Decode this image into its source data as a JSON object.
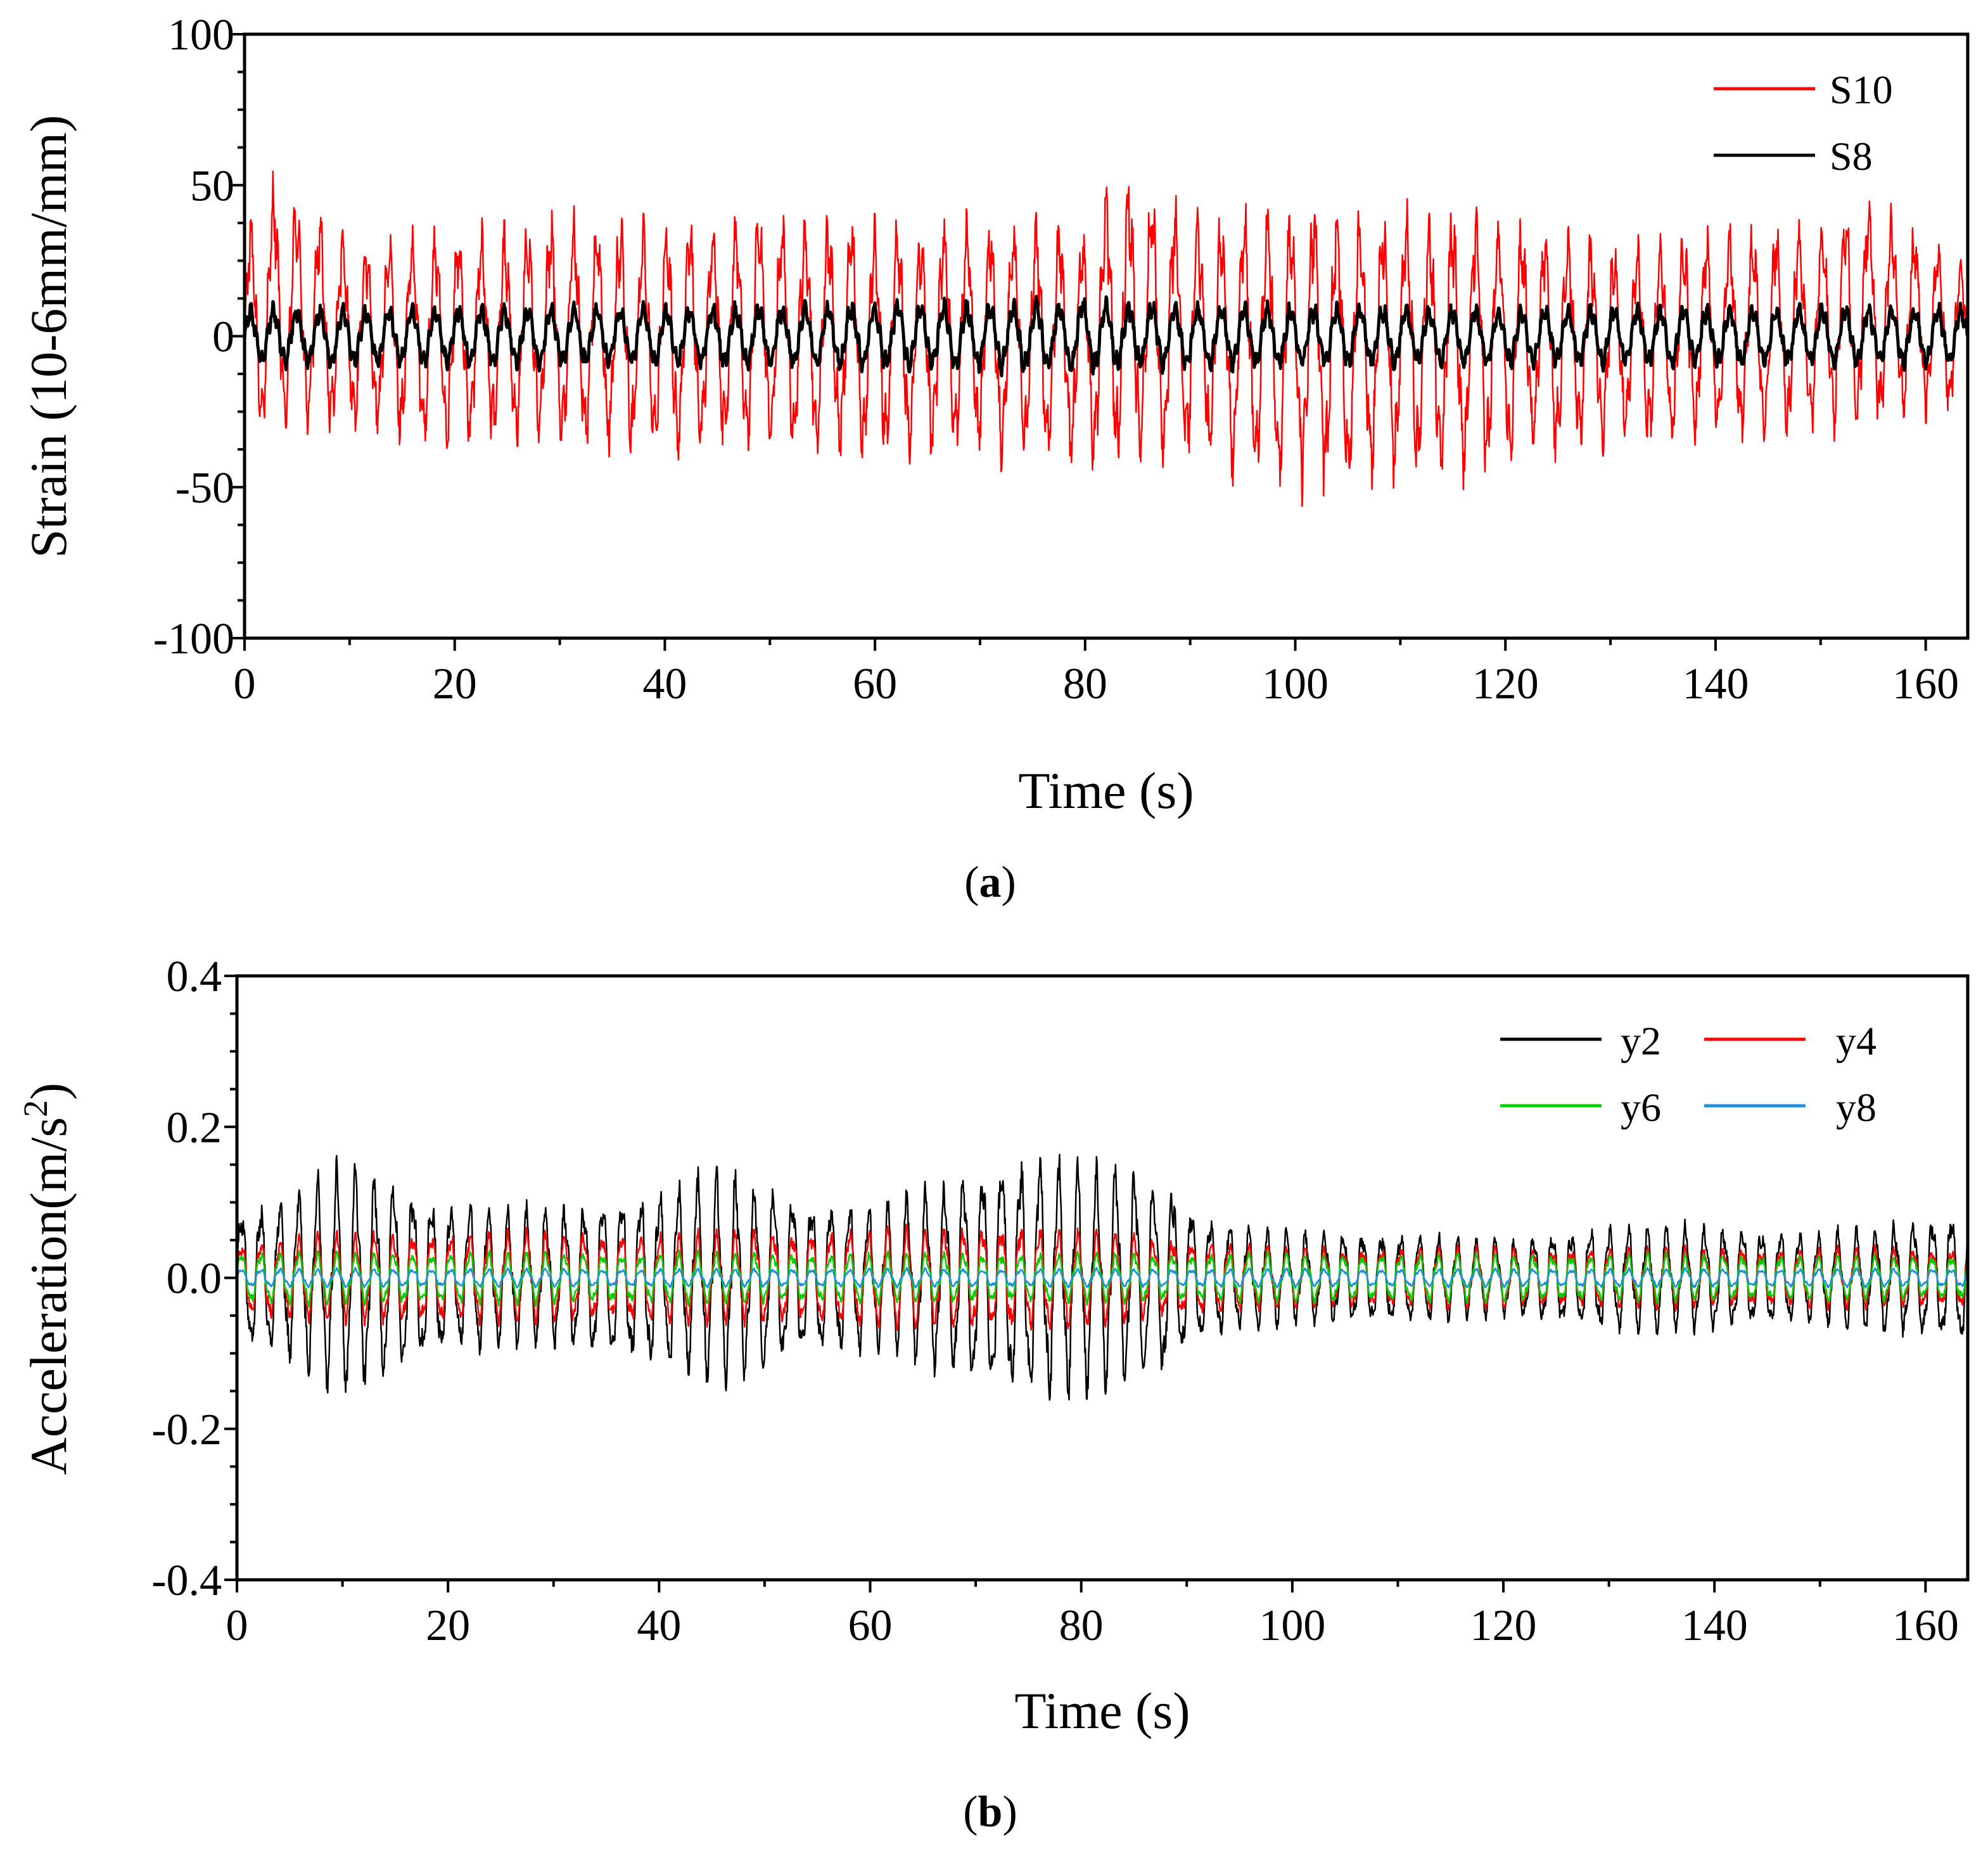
{
  "chart_data": [
    {
      "id": "a",
      "type": "line",
      "panel_label": "a",
      "xlabel": "Time (s)",
      "ylabel": "Strain (10-6mm/mm)",
      "xlim": [
        0,
        164
      ],
      "ylim": [
        -100,
        100
      ],
      "xticks": [
        0,
        20,
        40,
        60,
        80,
        100,
        120,
        140,
        160
      ],
      "xtick_labels": [
        "0",
        "20",
        "40",
        "60",
        "80",
        "100",
        "120",
        "140",
        "160"
      ],
      "yticks": [
        -100,
        -50,
        0,
        50,
        100
      ],
      "ytick_labels": [
        "-100",
        "-50",
        "0",
        "50",
        "100"
      ],
      "legend": {
        "position": "top-right",
        "columns": 1
      },
      "series": [
        {
          "name": "S10",
          "color": "#ff0000",
          "description": "oscillating strain signal, period about 2.2 s",
          "envelope_x": [
            0,
            3,
            10,
            20,
            30,
            40,
            50,
            60,
            70,
            80,
            83,
            90,
            100,
            110,
            115,
            120,
            130,
            140,
            150,
            154,
            164
          ],
          "envelope_max": [
            32,
            52,
            30,
            33,
            38,
            36,
            38,
            36,
            38,
            36,
            54,
            38,
            42,
            40,
            40,
            38,
            30,
            34,
            36,
            46,
            22
          ],
          "envelope_min": [
            -30,
            -32,
            -30,
            -35,
            -35,
            -38,
            -36,
            -40,
            -38,
            -42,
            -40,
            -40,
            -50,
            -44,
            -48,
            -40,
            -35,
            -33,
            -32,
            -30,
            -22
          ],
          "period": 2.2
        },
        {
          "name": "S8",
          "color": "#000000",
          "description": "small oscillating strain signal around zero",
          "envelope_x": [
            0,
            40,
            80,
            100,
            164
          ],
          "envelope_max": [
            10,
            10,
            12,
            10,
            10
          ],
          "envelope_min": [
            -10,
            -10,
            -12,
            -10,
            -10
          ],
          "period": 2.2
        }
      ]
    },
    {
      "id": "b",
      "type": "line",
      "panel_label": "b",
      "xlabel": "Time (s)",
      "ylabel_main": "Acceleration(m/s",
      "ylabel_sup": "2",
      "ylabel_end": ")",
      "xlim": [
        0,
        164
      ],
      "ylim": [
        -0.4,
        0.4
      ],
      "xticks": [
        0,
        20,
        40,
        60,
        80,
        100,
        120,
        140,
        160
      ],
      "xtick_labels": [
        "0",
        "20",
        "40",
        "60",
        "80",
        "100",
        "120",
        "140",
        "160"
      ],
      "yticks": [
        -0.4,
        -0.2,
        0.0,
        0.2,
        0.4
      ],
      "ytick_labels": [
        "-0.4",
        "-0.2",
        "0.0",
        "0.2",
        "0.4"
      ],
      "legend": {
        "position": "top-right",
        "columns": 2
      },
      "series": [
        {
          "name": "y2",
          "color": "#000000",
          "description": "largest acceleration signal, beating envelope",
          "envelope_x": [
            0,
            5,
            10,
            20,
            30,
            40,
            46,
            55,
            62,
            70,
            74,
            80,
            88,
            92,
            100,
            110,
            120,
            130,
            140,
            150,
            160,
            164
          ],
          "envelope_amp": [
            0.09,
            0.11,
            0.15,
            0.1,
            0.09,
            0.12,
            0.14,
            0.1,
            0.1,
            0.14,
            0.16,
            0.15,
            0.13,
            0.08,
            0.06,
            0.06,
            0.05,
            0.07,
            0.07,
            0.06,
            0.08,
            0.09
          ],
          "period": 1.8
        },
        {
          "name": "y4",
          "color": "#ff0000",
          "description": "medium acceleration signal",
          "envelope_x": [
            0,
            10,
            46,
            74,
            100,
            164
          ],
          "envelope_amp": [
            0.05,
            0.06,
            0.06,
            0.07,
            0.04,
            0.04
          ],
          "period": 1.8
        },
        {
          "name": "y6",
          "color": "#00cc00",
          "description": "small acceleration signal",
          "envelope_x": [
            0,
            164
          ],
          "envelope_amp": [
            0.035,
            0.03
          ],
          "period": 1.8
        },
        {
          "name": "y8",
          "color": "#1e8fe0",
          "description": "smallest acceleration signal",
          "envelope_x": [
            0,
            164
          ],
          "envelope_amp": [
            0.012,
            0.012
          ],
          "period": 1.8
        }
      ]
    }
  ]
}
